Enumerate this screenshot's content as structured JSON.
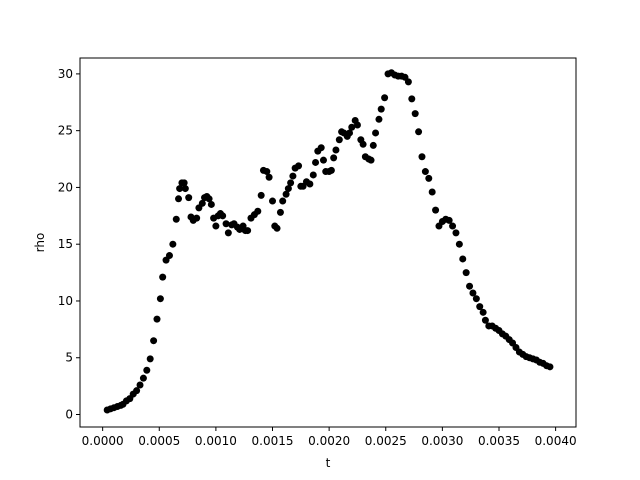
{
  "chart_data": {
    "type": "scatter",
    "title": "",
    "xlabel": "t",
    "ylabel": "rho",
    "xlim": [
      -0.0002,
      0.00418
    ],
    "ylim": [
      -1.1,
      31.4
    ],
    "grid": false,
    "marker_color": "#000000",
    "x_ticks": [
      {
        "value": 0.0,
        "label": "0.0000"
      },
      {
        "value": 0.0005,
        "label": "0.0005"
      },
      {
        "value": 0.001,
        "label": "0.0010"
      },
      {
        "value": 0.0015,
        "label": "0.0015"
      },
      {
        "value": 0.002,
        "label": "0.0020"
      },
      {
        "value": 0.0025,
        "label": "0.0025"
      },
      {
        "value": 0.003,
        "label": "0.0030"
      },
      {
        "value": 0.0035,
        "label": "0.0035"
      },
      {
        "value": 0.004,
        "label": "0.0040"
      }
    ],
    "y_ticks": [
      {
        "value": 0,
        "label": "0"
      },
      {
        "value": 5,
        "label": "5"
      },
      {
        "value": 10,
        "label": "10"
      },
      {
        "value": 15,
        "label": "15"
      },
      {
        "value": 20,
        "label": "20"
      },
      {
        "value": 25,
        "label": "25"
      },
      {
        "value": 30,
        "label": "30"
      }
    ],
    "points": [
      [
        4e-05,
        0.4
      ],
      [
        7e-05,
        0.5
      ],
      [
        0.0001,
        0.6
      ],
      [
        0.00013,
        0.7
      ],
      [
        0.00016,
        0.8
      ],
      [
        0.00018,
        0.9
      ],
      [
        0.00021,
        1.2
      ],
      [
        0.00024,
        1.4
      ],
      [
        0.00027,
        1.8
      ],
      [
        0.0003,
        2.1
      ],
      [
        0.00033,
        2.6
      ],
      [
        0.00036,
        3.2
      ],
      [
        0.00039,
        3.9
      ],
      [
        0.00042,
        4.9
      ],
      [
        0.00045,
        6.5
      ],
      [
        0.00048,
        8.4
      ],
      [
        0.00051,
        10.2
      ],
      [
        0.00053,
        12.1
      ],
      [
        0.00056,
        13.6
      ],
      [
        0.00059,
        14.0
      ],
      [
        0.00062,
        15.0
      ],
      [
        0.00065,
        17.2
      ],
      [
        0.00067,
        19.0
      ],
      [
        0.00068,
        19.9
      ],
      [
        0.0007,
        20.4
      ],
      [
        0.00072,
        20.4
      ],
      [
        0.00073,
        19.9
      ],
      [
        0.00076,
        19.1
      ],
      [
        0.00078,
        17.4
      ],
      [
        0.0008,
        17.1
      ],
      [
        0.00083,
        17.3
      ],
      [
        0.00085,
        18.2
      ],
      [
        0.00088,
        18.6
      ],
      [
        0.0009,
        19.1
      ],
      [
        0.00092,
        19.2
      ],
      [
        0.00094,
        19.0
      ],
      [
        0.00096,
        18.5
      ],
      [
        0.00098,
        17.3
      ],
      [
        0.001,
        16.6
      ],
      [
        0.00102,
        17.5
      ],
      [
        0.00104,
        17.7
      ],
      [
        0.00106,
        17.5
      ],
      [
        0.00109,
        16.8
      ],
      [
        0.00111,
        16.0
      ],
      [
        0.00114,
        16.7
      ],
      [
        0.00116,
        16.8
      ],
      [
        0.00119,
        16.5
      ],
      [
        0.00121,
        16.3
      ],
      [
        0.00124,
        16.6
      ],
      [
        0.00126,
        16.2
      ],
      [
        0.00128,
        16.2
      ],
      [
        0.00131,
        17.3
      ],
      [
        0.00134,
        17.6
      ],
      [
        0.00137,
        17.9
      ],
      [
        0.0014,
        19.3
      ],
      [
        0.00142,
        21.5
      ],
      [
        0.00145,
        21.4
      ],
      [
        0.00147,
        20.9
      ],
      [
        0.0015,
        18.8
      ],
      [
        0.00152,
        16.6
      ],
      [
        0.00154,
        16.4
      ],
      [
        0.00157,
        17.8
      ],
      [
        0.00159,
        18.8
      ],
      [
        0.00162,
        19.4
      ],
      [
        0.00164,
        19.9
      ],
      [
        0.00166,
        20.4
      ],
      [
        0.00168,
        21.0
      ],
      [
        0.0017,
        21.7
      ],
      [
        0.00173,
        21.9
      ],
      [
        0.00175,
        20.1
      ],
      [
        0.00177,
        20.1
      ],
      [
        0.0018,
        20.5
      ],
      [
        0.00183,
        20.3
      ],
      [
        0.00186,
        21.1
      ],
      [
        0.00188,
        22.2
      ],
      [
        0.0019,
        23.2
      ],
      [
        0.00193,
        23.5
      ],
      [
        0.00195,
        22.4
      ],
      [
        0.00197,
        21.4
      ],
      [
        0.002,
        21.4
      ],
      [
        0.00202,
        21.5
      ],
      [
        0.00204,
        22.6
      ],
      [
        0.00206,
        23.3
      ],
      [
        0.00209,
        24.2
      ],
      [
        0.00211,
        24.9
      ],
      [
        0.00213,
        24.8
      ],
      [
        0.00216,
        24.5
      ],
      [
        0.00218,
        24.8
      ],
      [
        0.0022,
        25.3
      ],
      [
        0.00223,
        25.9
      ],
      [
        0.00225,
        25.5
      ],
      [
        0.00228,
        24.2
      ],
      [
        0.0023,
        23.8
      ],
      [
        0.00232,
        22.7
      ],
      [
        0.00235,
        22.5
      ],
      [
        0.00237,
        22.4
      ],
      [
        0.00239,
        23.7
      ],
      [
        0.00241,
        24.8
      ],
      [
        0.00244,
        26.0
      ],
      [
        0.00246,
        26.9
      ],
      [
        0.00249,
        27.9
      ],
      [
        0.00252,
        30.0
      ],
      [
        0.00255,
        30.1
      ],
      [
        0.00258,
        29.9
      ],
      [
        0.00261,
        29.8
      ],
      [
        0.00264,
        29.8
      ],
      [
        0.00267,
        29.7
      ],
      [
        0.0027,
        29.3
      ],
      [
        0.00273,
        27.8
      ],
      [
        0.00276,
        26.5
      ],
      [
        0.00279,
        24.9
      ],
      [
        0.00282,
        22.7
      ],
      [
        0.00285,
        21.4
      ],
      [
        0.00288,
        20.8
      ],
      [
        0.00291,
        19.6
      ],
      [
        0.00294,
        18.0
      ],
      [
        0.00297,
        16.6
      ],
      [
        0.003,
        17.0
      ],
      [
        0.00303,
        17.2
      ],
      [
        0.00306,
        17.1
      ],
      [
        0.00309,
        16.6
      ],
      [
        0.00312,
        16.0
      ],
      [
        0.00315,
        15.0
      ],
      [
        0.00318,
        13.7
      ],
      [
        0.00321,
        12.5
      ],
      [
        0.00324,
        11.3
      ],
      [
        0.00327,
        10.7
      ],
      [
        0.0033,
        10.2
      ],
      [
        0.00333,
        9.5
      ],
      [
        0.00336,
        9.0
      ],
      [
        0.00338,
        8.3
      ],
      [
        0.00341,
        7.8
      ],
      [
        0.00344,
        7.8
      ],
      [
        0.00347,
        7.6
      ],
      [
        0.0035,
        7.4
      ],
      [
        0.00353,
        7.1
      ],
      [
        0.00356,
        6.9
      ],
      [
        0.00359,
        6.6
      ],
      [
        0.00362,
        6.3
      ],
      [
        0.00365,
        5.9
      ],
      [
        0.00368,
        5.5
      ],
      [
        0.00371,
        5.3
      ],
      [
        0.00374,
        5.1
      ],
      [
        0.00377,
        5.0
      ],
      [
        0.0038,
        4.9
      ],
      [
        0.00383,
        4.8
      ],
      [
        0.00386,
        4.6
      ],
      [
        0.00389,
        4.5
      ],
      [
        0.00392,
        4.3
      ],
      [
        0.00395,
        4.2
      ]
    ]
  }
}
